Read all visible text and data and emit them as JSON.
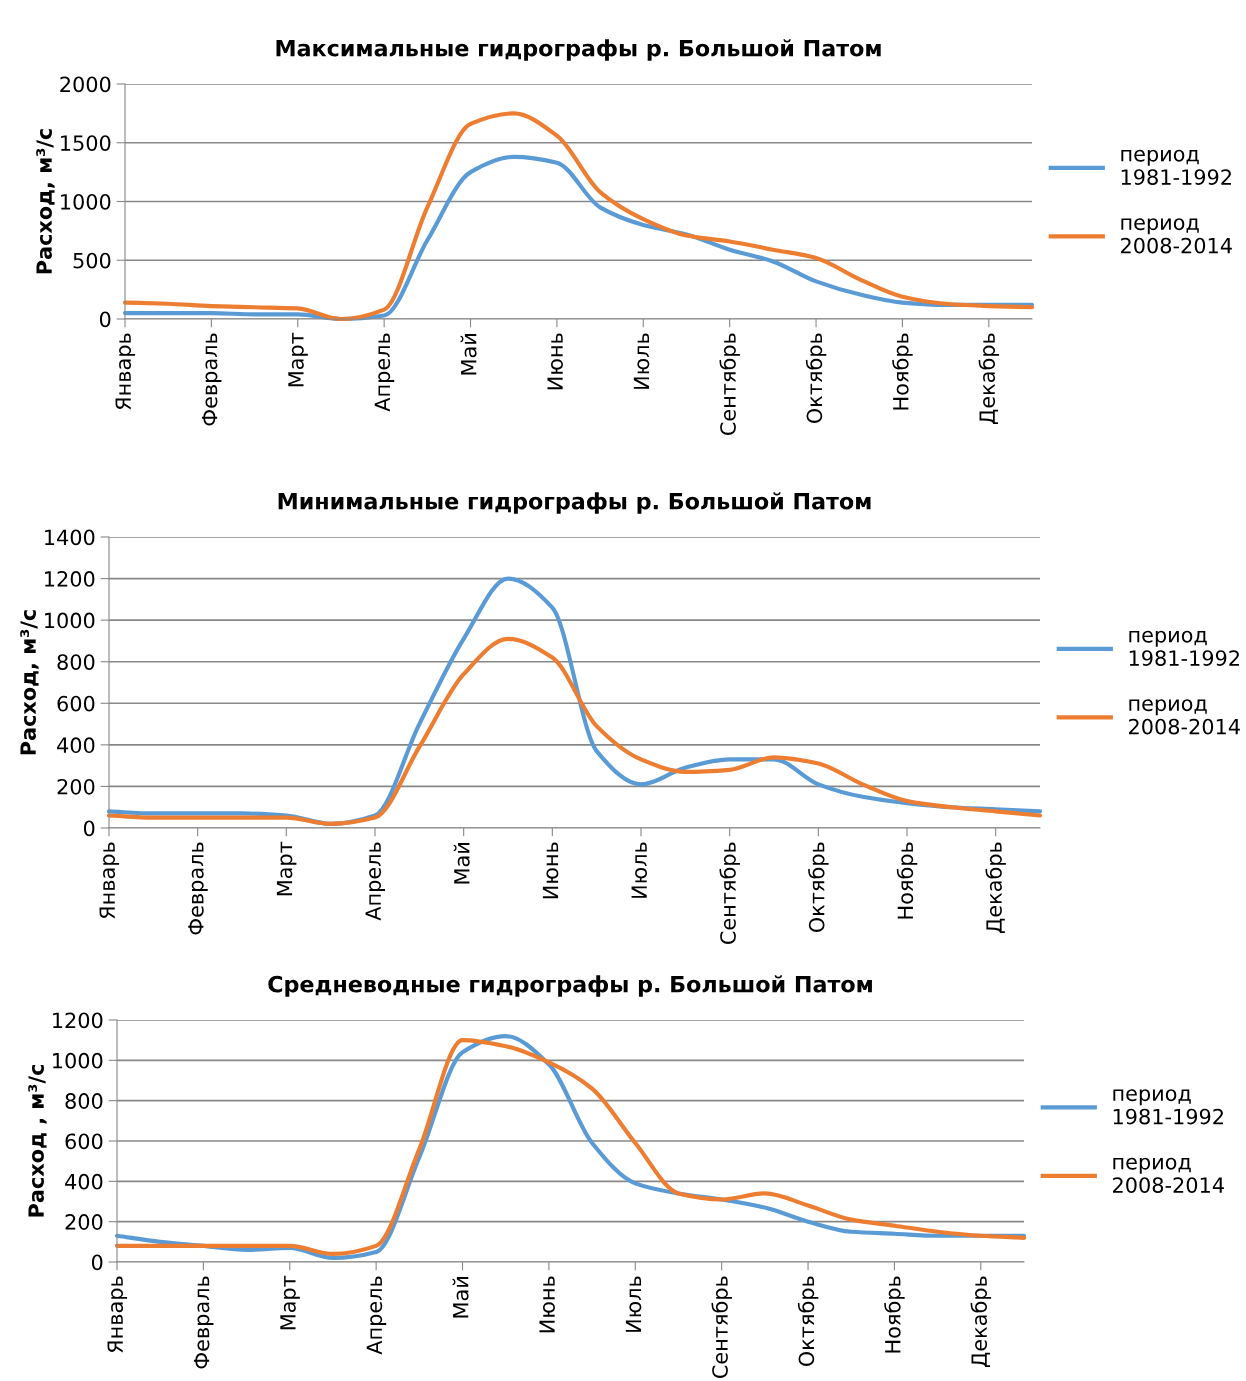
{
  "chart_data": [
    {
      "type": "line",
      "title": "Максимальные гидрографы р. Большой Патом",
      "ylabel": "Расход, м³/с",
      "categories": [
        "Январь",
        null,
        "Февраль",
        null,
        "Март",
        null,
        "Апрель",
        null,
        "Май",
        null,
        "Июнь",
        null,
        "Июль",
        null,
        "Сентябрь",
        null,
        "Октябрь",
        null,
        "Ноябрь",
        null,
        "Декабрь",
        null
      ],
      "ylim": [
        0,
        2000
      ],
      "yticks": [
        0,
        500,
        1000,
        1500,
        2000
      ],
      "grid": "y",
      "legend": "right",
      "marker": "none",
      "line_style": "solid",
      "series": [
        {
          "name": "период\n1981-1992",
          "color": "#5b9bd5",
          "values": [
            50,
            50,
            50,
            40,
            40,
            0,
            30,
            670,
            1250,
            1380,
            1330,
            950,
            800,
            720,
            590,
            490,
            320,
            210,
            140,
            120,
            120,
            120
          ]
        },
        {
          "name": "период\n2008-2014",
          "color": "#ed7d31",
          "values": [
            140,
            130,
            110,
            100,
            90,
            0,
            80,
            950,
            1660,
            1750,
            1560,
            1080,
            850,
            710,
            660,
            590,
            520,
            340,
            190,
            130,
            110,
            100
          ]
        }
      ]
    },
    {
      "type": "line",
      "title": "Минимальные гидрографы р. Большой Патом",
      "ylabel": "Расход, м³/с",
      "categories": [
        "Январь",
        null,
        "Февраль",
        null,
        "Март",
        null,
        "Апрель",
        null,
        "Май",
        null,
        "Июнь",
        null,
        "Июль",
        null,
        "Сентябрь",
        null,
        "Октябрь",
        null,
        "Ноябрь",
        null,
        "Декабрь",
        null
      ],
      "ylim": [
        0,
        1400
      ],
      "yticks": [
        0,
        200,
        400,
        600,
        800,
        1000,
        1200,
        1400
      ],
      "grid": "y",
      "legend": "right",
      "marker": "none",
      "line_style": "solid",
      "series": [
        {
          "name": "период\n1981-1992",
          "color": "#5b9bd5",
          "values": [
            80,
            70,
            70,
            70,
            60,
            20,
            60,
            500,
            910,
            1200,
            1060,
            370,
            210,
            290,
            330,
            330,
            210,
            150,
            120,
            100,
            90,
            80
          ]
        },
        {
          "name": "период\n2008-2014",
          "color": "#ed7d31",
          "values": [
            60,
            50,
            50,
            50,
            50,
            20,
            50,
            390,
            740,
            910,
            820,
            490,
            330,
            270,
            280,
            340,
            310,
            210,
            130,
            100,
            80,
            60
          ]
        }
      ]
    },
    {
      "type": "line",
      "title": "Средневодные гидрографы р. Большой Патом",
      "ylabel": "Расход , м³/с",
      "categories": [
        "Январь",
        null,
        "Февраль",
        null,
        "Март",
        null,
        "Апрель",
        null,
        "Май",
        null,
        "Июнь",
        null,
        "Июль",
        null,
        "Сентябрь",
        null,
        "Октябрь",
        null,
        "Ноябрь",
        null,
        "Декабрь",
        null
      ],
      "ylim": [
        0,
        1200
      ],
      "yticks": [
        0,
        200,
        400,
        600,
        800,
        1000,
        1200
      ],
      "grid": "y",
      "legend": "right",
      "marker": "none",
      "line_style": "solid",
      "series": [
        {
          "name": "период\n1981-1992",
          "color": "#5b9bd5",
          "values": [
            130,
            100,
            80,
            60,
            70,
            20,
            50,
            520,
            1040,
            1120,
            980,
            590,
            390,
            340,
            310,
            270,
            200,
            150,
            140,
            130,
            130,
            130
          ]
        },
        {
          "name": "период\n2008-2014",
          "color": "#ed7d31",
          "values": [
            80,
            80,
            80,
            80,
            80,
            40,
            80,
            560,
            1100,
            1070,
            990,
            860,
            590,
            340,
            310,
            340,
            280,
            210,
            180,
            150,
            130,
            120
          ]
        }
      ]
    }
  ]
}
